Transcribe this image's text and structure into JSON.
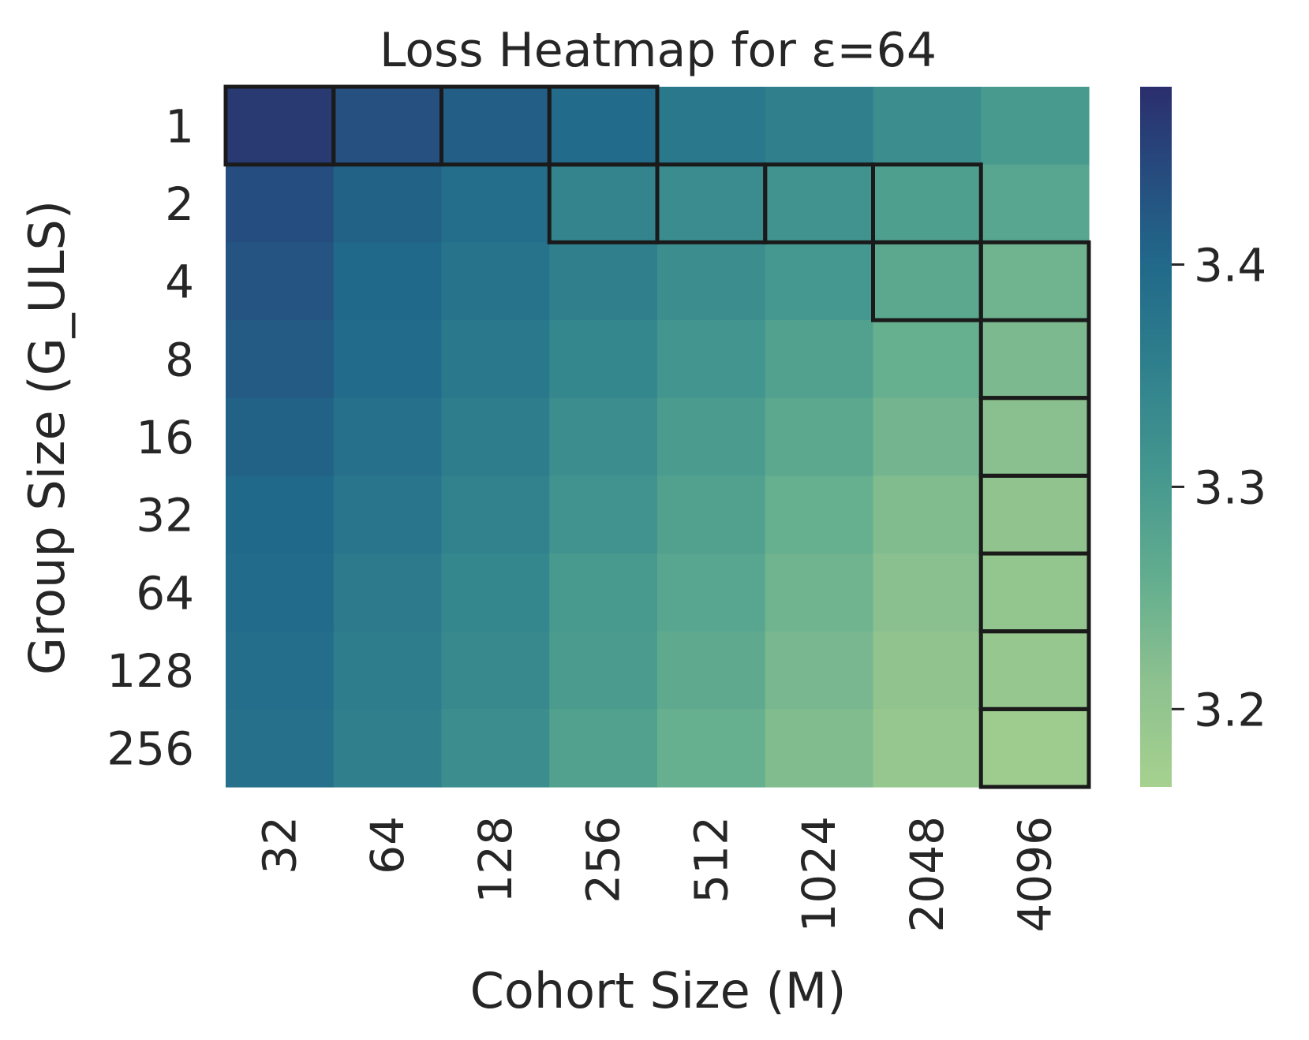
{
  "chart_data": {
    "type": "heatmap",
    "title": "Loss Heatmap for ε=64",
    "xlabel": "Cohort Size (M)",
    "ylabel": "Group Size (G_ULS)",
    "x_categories": [
      "32",
      "64",
      "128",
      "256",
      "512",
      "1024",
      "2048",
      "4096"
    ],
    "y_categories": [
      "1",
      "2",
      "4",
      "8",
      "16",
      "32",
      "64",
      "128",
      "256"
    ],
    "values": [
      [
        3.465,
        3.435,
        3.415,
        3.395,
        3.37,
        3.355,
        3.325,
        3.3
      ],
      [
        3.44,
        3.41,
        3.39,
        3.345,
        3.33,
        3.315,
        3.29,
        3.275
      ],
      [
        3.43,
        3.4,
        3.38,
        3.355,
        3.325,
        3.305,
        3.27,
        3.245
      ],
      [
        3.42,
        3.395,
        3.37,
        3.34,
        3.31,
        3.285,
        3.255,
        3.23
      ],
      [
        3.41,
        3.385,
        3.36,
        3.325,
        3.295,
        3.27,
        3.24,
        3.215
      ],
      [
        3.4,
        3.375,
        3.35,
        3.315,
        3.285,
        3.255,
        3.225,
        3.205
      ],
      [
        3.395,
        3.365,
        3.34,
        3.3,
        3.275,
        3.245,
        3.215,
        3.2
      ],
      [
        3.39,
        3.36,
        3.335,
        3.295,
        3.265,
        3.235,
        3.205,
        3.195
      ],
      [
        3.385,
        3.355,
        3.325,
        3.285,
        3.255,
        3.225,
        3.195,
        3.18
      ]
    ],
    "highlighted_cells": [
      [
        0,
        0
      ],
      [
        0,
        1
      ],
      [
        0,
        2
      ],
      [
        0,
        3
      ],
      [
        1,
        3
      ],
      [
        1,
        4
      ],
      [
        1,
        5
      ],
      [
        1,
        6
      ],
      [
        2,
        6
      ],
      [
        2,
        7
      ],
      [
        3,
        7
      ],
      [
        4,
        7
      ],
      [
        5,
        7
      ],
      [
        6,
        7
      ],
      [
        7,
        7
      ],
      [
        8,
        7
      ]
    ],
    "colormap": "crest",
    "colorbar": {
      "vmin": 3.165,
      "vmax": 3.48,
      "ticks": [
        3.2,
        3.3,
        3.4
      ],
      "tick_labels": [
        "3.2",
        "3.3",
        "3.4"
      ]
    },
    "colors": {
      "low": "#a6d18f",
      "high": "#2b2e6c",
      "highlight_border": "#1a1a1a",
      "text": "#262626"
    }
  }
}
